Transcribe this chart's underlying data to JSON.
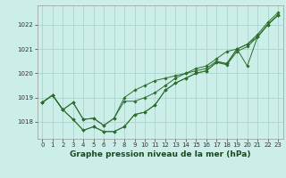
{
  "title": "Graphe pression niveau de la mer (hPa)",
  "background_color": "#cceee8",
  "grid_color": "#aad4ce",
  "line_color": "#2d6e2d",
  "xlim": [
    -0.5,
    23.5
  ],
  "ylim": [
    1017.3,
    1022.8
  ],
  "yticks": [
    1018,
    1019,
    1020,
    1021,
    1022
  ],
  "xticks": [
    0,
    1,
    2,
    3,
    4,
    5,
    6,
    7,
    8,
    9,
    10,
    11,
    12,
    13,
    14,
    15,
    16,
    17,
    18,
    19,
    20,
    21,
    22,
    23
  ],
  "xlabel_size": 6.5,
  "tick_labelsize": 5.0,
  "series": [
    [
      1018.8,
      1019.1,
      1018.5,
      1018.1,
      1017.65,
      1017.8,
      1017.6,
      1017.6,
      1017.8,
      1018.3,
      1018.4,
      1018.7,
      1019.3,
      1019.6,
      1019.8,
      1020.0,
      1020.1,
      1020.45,
      1020.35,
      1020.9,
      1021.1,
      1021.5,
      1022.0,
      1022.4
    ],
    [
      1018.8,
      1019.1,
      1018.5,
      1018.1,
      1017.65,
      1017.8,
      1017.6,
      1017.6,
      1017.8,
      1018.3,
      1018.4,
      1018.7,
      1019.3,
      1019.6,
      1019.8,
      1020.0,
      1020.1,
      1020.45,
      1020.4,
      1021.0,
      1020.3,
      1021.5,
      1022.0,
      1022.4
    ],
    [
      1018.8,
      1019.1,
      1018.5,
      1018.8,
      1018.1,
      1018.15,
      1017.85,
      1018.15,
      1018.85,
      1018.85,
      1019.0,
      1019.2,
      1019.5,
      1019.8,
      1020.0,
      1020.1,
      1020.2,
      1020.5,
      1020.4,
      1021.0,
      1021.2,
      1021.5,
      1022.0,
      1022.4
    ],
    [
      1018.8,
      1019.1,
      1018.5,
      1018.8,
      1018.1,
      1018.15,
      1017.85,
      1018.15,
      1019.0,
      1019.3,
      1019.5,
      1019.7,
      1019.8,
      1019.9,
      1020.0,
      1020.2,
      1020.3,
      1020.6,
      1020.9,
      1021.0,
      1021.2,
      1021.6,
      1022.1,
      1022.5
    ]
  ]
}
